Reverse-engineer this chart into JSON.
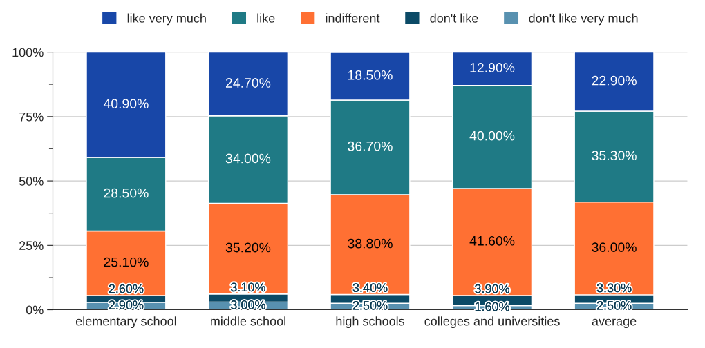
{
  "chart_data": {
    "type": "bar",
    "stacked": true,
    "categories": [
      "elementary school",
      "middle school",
      "high schools",
      "colleges and universities",
      "average"
    ],
    "series": [
      {
        "name": "don't like very much",
        "color": "#5891b0",
        "values": [
          2.9,
          3.0,
          2.5,
          1.6,
          2.5
        ],
        "value_labels": [
          "2.90%",
          "3.00%",
          "2.50%",
          "1.60%",
          "2.50%"
        ]
      },
      {
        "name": "don't like",
        "color": "#0b4a66",
        "values": [
          2.6,
          3.1,
          3.4,
          3.9,
          3.3
        ],
        "value_labels": [
          "2.60%",
          "3.10%",
          "3.40%",
          "3.90%",
          "3.30%"
        ]
      },
      {
        "name": "indifferent",
        "color": "#ff7033",
        "values": [
          25.1,
          35.2,
          38.8,
          41.6,
          36.0
        ],
        "value_labels": [
          "25.10%",
          "35.20%",
          "38.80%",
          "41.60%",
          "36.00%"
        ]
      },
      {
        "name": "like",
        "color": "#1f7a85",
        "values": [
          28.5,
          34.0,
          36.7,
          40.0,
          35.3
        ],
        "value_labels": [
          "28.50%",
          "34.00%",
          "36.70%",
          "40.00%",
          "35.30%"
        ]
      },
      {
        "name": "like very much",
        "color": "#1847a8",
        "values": [
          40.9,
          24.7,
          18.5,
          12.9,
          22.9
        ],
        "value_labels": [
          "40.90%",
          "24.70%",
          "18.50%",
          "12.90%",
          "22.90%"
        ]
      }
    ],
    "ylim": [
      0,
      100
    ],
    "yticks": [
      {
        "value": 0,
        "label": "0%"
      },
      {
        "value": 25,
        "label": "25%"
      },
      {
        "value": 50,
        "label": "50%"
      },
      {
        "value": 75,
        "label": "75%"
      },
      {
        "value": 100,
        "label": "100%"
      }
    ],
    "grid": "y",
    "legend": "top"
  }
}
